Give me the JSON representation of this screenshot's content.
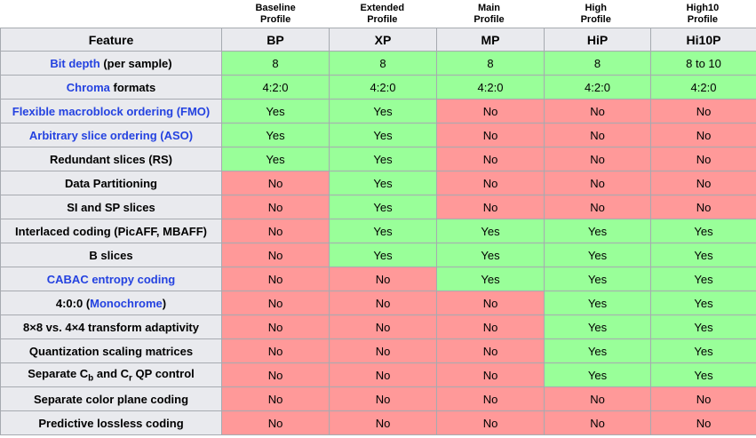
{
  "colors": {
    "yes_bg": "#99ff99",
    "no_bg": "#ff9999",
    "header_bg": "#e9eaee",
    "border": "#a6aab0",
    "border_outer": "#8a8d91",
    "link": "#2442e0"
  },
  "top_labels": [
    {
      "line1": "Baseline",
      "line2": "Profile"
    },
    {
      "line1": "Extended",
      "line2": "Profile"
    },
    {
      "line1": "Main",
      "line2": "Profile"
    },
    {
      "line1": "High",
      "line2": "Profile"
    },
    {
      "line1": "High10",
      "line2": "Profile"
    }
  ],
  "table": {
    "feature_header": "Feature",
    "profile_codes": [
      "BP",
      "XP",
      "MP",
      "HiP",
      "Hi10P"
    ],
    "rows": [
      {
        "feature": [
          {
            "text": "Bit depth",
            "link": true
          },
          {
            "text": " (per sample)"
          }
        ],
        "values": [
          "8",
          "8",
          "8",
          "8",
          "8 to 10"
        ],
        "types": [
          "yes",
          "yes",
          "yes",
          "yes",
          "yes"
        ]
      },
      {
        "feature": [
          {
            "text": "Chroma",
            "link": true
          },
          {
            "text": " formats"
          }
        ],
        "values": [
          "4:2:0",
          "4:2:0",
          "4:2:0",
          "4:2:0",
          "4:2:0"
        ],
        "types": [
          "yes",
          "yes",
          "yes",
          "yes",
          "yes"
        ]
      },
      {
        "feature": [
          {
            "text": "Flexible macroblock ordering (FMO)",
            "link": true
          }
        ],
        "values": [
          "Yes",
          "Yes",
          "No",
          "No",
          "No"
        ],
        "types": [
          "yes",
          "yes",
          "no",
          "no",
          "no"
        ]
      },
      {
        "feature": [
          {
            "text": "Arbitrary slice ordering (ASO)",
            "link": true
          }
        ],
        "values": [
          "Yes",
          "Yes",
          "No",
          "No",
          "No"
        ],
        "types": [
          "yes",
          "yes",
          "no",
          "no",
          "no"
        ]
      },
      {
        "feature": [
          {
            "text": "Redundant slices (RS)"
          }
        ],
        "values": [
          "Yes",
          "Yes",
          "No",
          "No",
          "No"
        ],
        "types": [
          "yes",
          "yes",
          "no",
          "no",
          "no"
        ]
      },
      {
        "feature": [
          {
            "text": "Data Partitioning"
          }
        ],
        "values": [
          "No",
          "Yes",
          "No",
          "No",
          "No"
        ],
        "types": [
          "no",
          "yes",
          "no",
          "no",
          "no"
        ]
      },
      {
        "feature": [
          {
            "text": "SI and SP slices"
          }
        ],
        "values": [
          "No",
          "Yes",
          "No",
          "No",
          "No"
        ],
        "types": [
          "no",
          "yes",
          "no",
          "no",
          "no"
        ]
      },
      {
        "feature": [
          {
            "text": "Interlaced coding (PicAFF, MBAFF)"
          }
        ],
        "values": [
          "No",
          "Yes",
          "Yes",
          "Yes",
          "Yes"
        ],
        "types": [
          "no",
          "yes",
          "yes",
          "yes",
          "yes"
        ]
      },
      {
        "feature": [
          {
            "text": "B slices"
          }
        ],
        "values": [
          "No",
          "Yes",
          "Yes",
          "Yes",
          "Yes"
        ],
        "types": [
          "no",
          "yes",
          "yes",
          "yes",
          "yes"
        ]
      },
      {
        "feature": [
          {
            "text": "CABAC entropy coding",
            "link": true
          }
        ],
        "values": [
          "No",
          "No",
          "Yes",
          "Yes",
          "Yes"
        ],
        "types": [
          "no",
          "no",
          "yes",
          "yes",
          "yes"
        ]
      },
      {
        "feature": [
          {
            "text": "4:0:0 ("
          },
          {
            "text": "Monochrome",
            "link": true
          },
          {
            "text": ")"
          }
        ],
        "values": [
          "No",
          "No",
          "No",
          "Yes",
          "Yes"
        ],
        "types": [
          "no",
          "no",
          "no",
          "yes",
          "yes"
        ]
      },
      {
        "feature": [
          {
            "text": "8×8 vs. 4×4 transform adaptivity"
          }
        ],
        "values": [
          "No",
          "No",
          "No",
          "Yes",
          "Yes"
        ],
        "types": [
          "no",
          "no",
          "no",
          "yes",
          "yes"
        ]
      },
      {
        "feature": [
          {
            "text": "Quantization scaling matrices"
          }
        ],
        "values": [
          "No",
          "No",
          "No",
          "Yes",
          "Yes"
        ],
        "types": [
          "no",
          "no",
          "no",
          "yes",
          "yes"
        ]
      },
      {
        "feature": [
          {
            "text": "Separate C"
          },
          {
            "text": "b",
            "sub": true
          },
          {
            "text": " and C"
          },
          {
            "text": "r",
            "sub": true
          },
          {
            "text": " QP control"
          }
        ],
        "values": [
          "No",
          "No",
          "No",
          "Yes",
          "Yes"
        ],
        "types": [
          "no",
          "no",
          "no",
          "yes",
          "yes"
        ]
      },
      {
        "feature": [
          {
            "text": "Separate color plane coding"
          }
        ],
        "values": [
          "No",
          "No",
          "No",
          "No",
          "No"
        ],
        "types": [
          "no",
          "no",
          "no",
          "no",
          "no"
        ]
      },
      {
        "feature": [
          {
            "text": "Predictive lossless coding"
          }
        ],
        "values": [
          "No",
          "No",
          "No",
          "No",
          "No"
        ],
        "types": [
          "no",
          "no",
          "no",
          "no",
          "no"
        ]
      }
    ]
  }
}
